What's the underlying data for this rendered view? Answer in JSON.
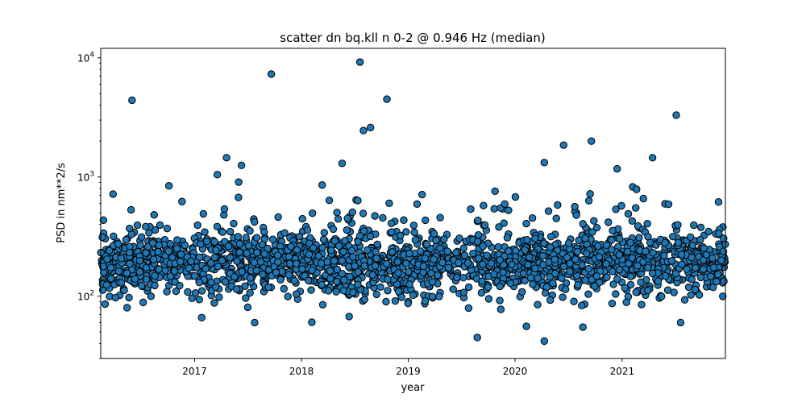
{
  "chart_data": {
    "type": "scatter",
    "title": "scatter dn bq.kll n 0-2 @ 0.946 Hz (median)",
    "xlabel": "year",
    "ylabel": "PSD in nm**2/s",
    "xscale": "time",
    "yscale": "log",
    "xlim": [
      "2016-02-15",
      "2021-12-20"
    ],
    "ylim": [
      30,
      12000
    ],
    "x_ticks": [
      {
        "label": "2017",
        "date": "2017-01-01"
      },
      {
        "label": "2018",
        "date": "2018-01-01"
      },
      {
        "label": "2019",
        "date": "2019-01-01"
      },
      {
        "label": "2020",
        "date": "2020-01-01"
      },
      {
        "label": "2021",
        "date": "2021-01-01"
      }
    ],
    "y_ticks": [
      {
        "base": "10",
        "exp": "2",
        "value": 100
      },
      {
        "base": "10",
        "exp": "3",
        "value": 1000
      },
      {
        "base": "10",
        "exp": "4",
        "value": 10000
      }
    ],
    "grid": false,
    "legend": "none",
    "marker_color": "#1f77b4",
    "marker_edge": "#000000",
    "outliers": [
      {
        "x": "2016-06-01",
        "y": 4400
      },
      {
        "x": "2017-09-20",
        "y": 7300
      },
      {
        "x": "2018-07-20",
        "y": 9200
      },
      {
        "x": "2018-10-20",
        "y": 4500
      },
      {
        "x": "2018-08-25",
        "y": 2600
      },
      {
        "x": "2018-08-01",
        "y": 2450
      },
      {
        "x": "2021-07-05",
        "y": 3300
      },
      {
        "x": "2020-09-18",
        "y": 2000
      },
      {
        "x": "2020-06-15",
        "y": 1850
      },
      {
        "x": "2017-04-20",
        "y": 1450
      },
      {
        "x": "2017-06-10",
        "y": 1250
      },
      {
        "x": "2018-05-20",
        "y": 1300
      },
      {
        "x": "2020-04-10",
        "y": 1320
      },
      {
        "x": "2021-04-15",
        "y": 1450
      },
      {
        "x": "2020-12-15",
        "y": 1170
      },
      {
        "x": "2016-05-15",
        "y": 80
      },
      {
        "x": "2017-01-25",
        "y": 66
      },
      {
        "x": "2017-07-25",
        "y": 60
      },
      {
        "x": "2019-08-25",
        "y": 45
      },
      {
        "x": "2020-04-10",
        "y": 42
      },
      {
        "x": "2020-08-20",
        "y": 55
      },
      {
        "x": "2021-07-20",
        "y": 60
      }
    ],
    "bulk": {
      "n": 2200,
      "log10_median": 2.27,
      "log10_spread": 0.13,
      "note_dates": "daily median values 2016-02 to 2021-12, mostly between 100 and 500"
    }
  }
}
